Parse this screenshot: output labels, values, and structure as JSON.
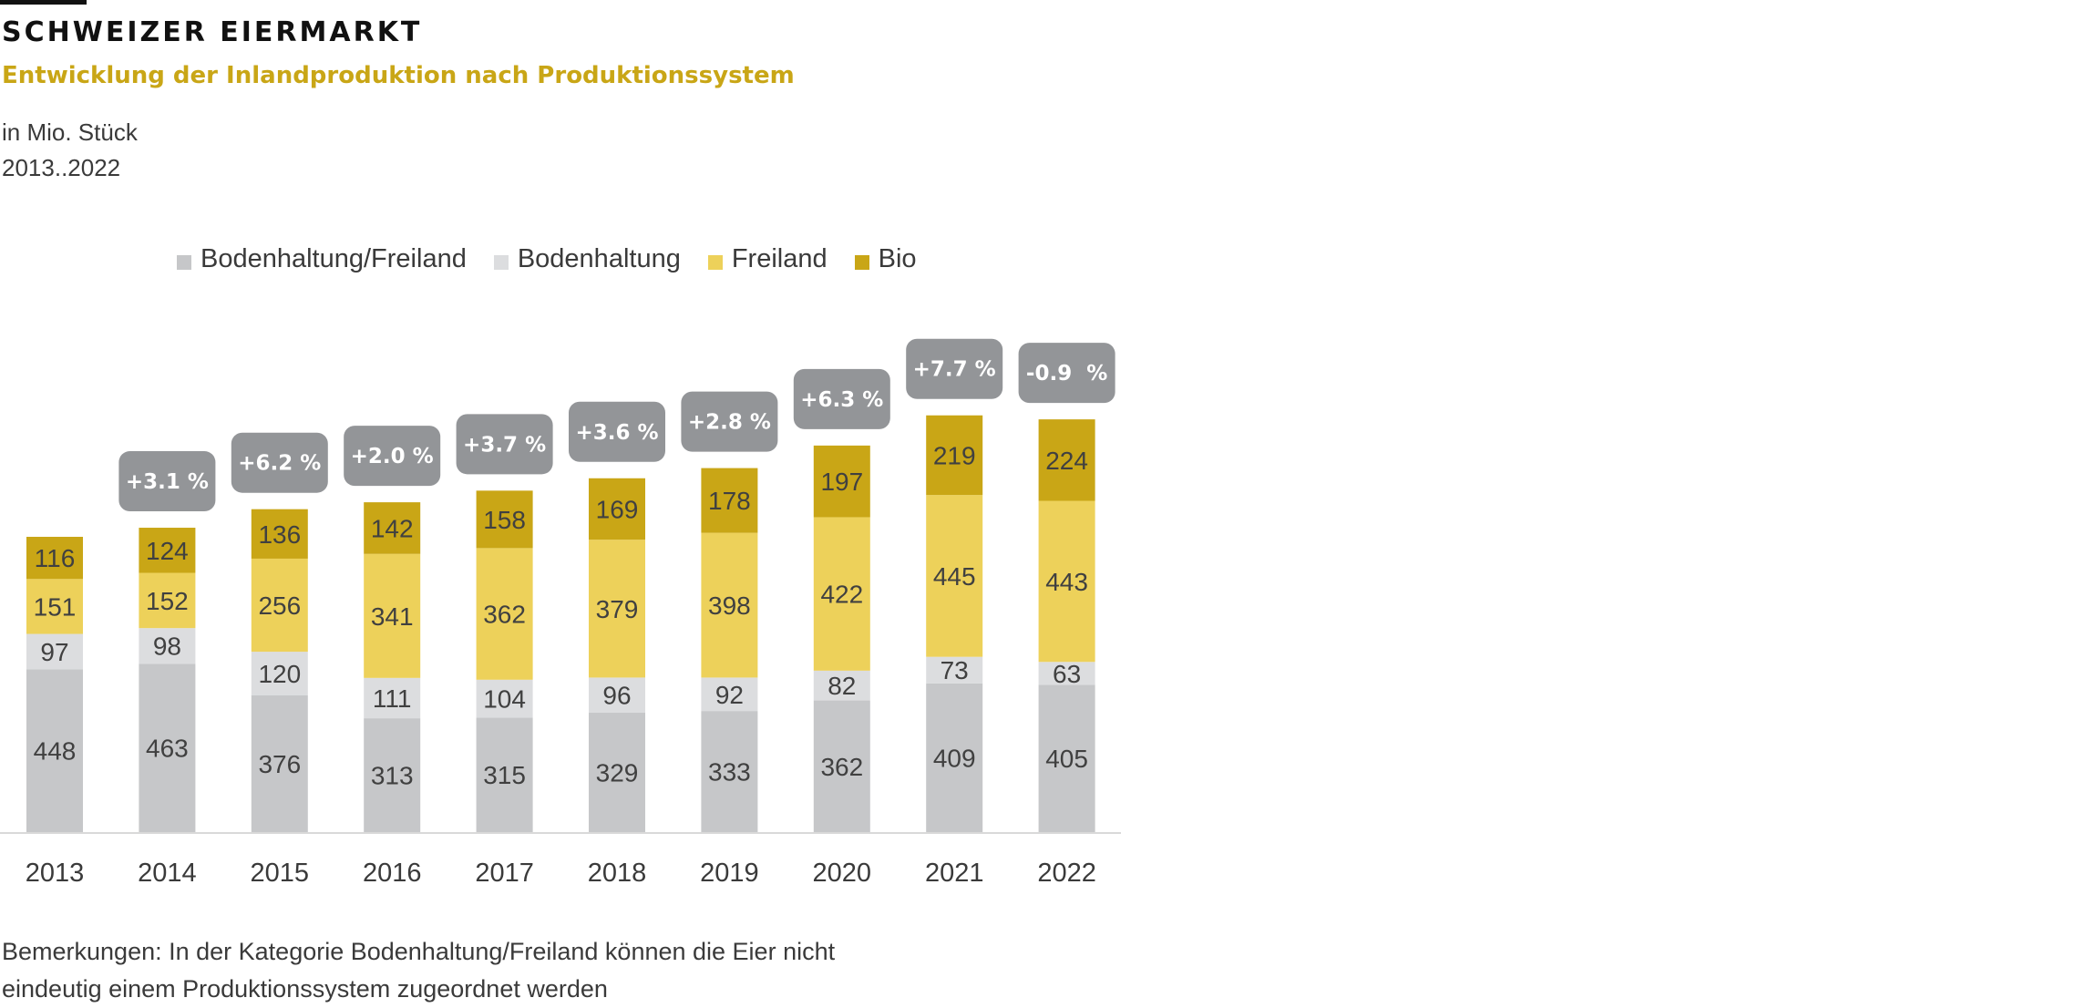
{
  "header": {
    "title": "SCHWEIZER EIERMARKT",
    "subtitle": "Entwicklung der Inlandproduktion nach Produktionssystem",
    "unit": "in Mio. Stück",
    "period": "2013..2022"
  },
  "chart_data": {
    "type": "bar",
    "stacked": true,
    "categories": [
      "2013",
      "2014",
      "2015",
      "2016",
      "2017",
      "2018",
      "2019",
      "2020",
      "2021",
      "2022"
    ],
    "series": [
      {
        "name": "Bodenhaltung/Freiland",
        "color": "#c6c7c9",
        "values": [
          448,
          463,
          376,
          313,
          315,
          329,
          333,
          362,
          409,
          405
        ]
      },
      {
        "name": "Bodenhaltung",
        "color": "#dcdddf",
        "values": [
          97,
          98,
          120,
          111,
          104,
          96,
          92,
          82,
          73,
          63
        ]
      },
      {
        "name": "Freiland",
        "color": "#edd15a",
        "values": [
          151,
          152,
          256,
          341,
          362,
          379,
          398,
          422,
          445,
          443
        ]
      },
      {
        "name": "Bio",
        "color": "#c9a616",
        "values": [
          116,
          124,
          136,
          142,
          158,
          169,
          178,
          197,
          219,
          224
        ]
      }
    ],
    "growth_labels": [
      "",
      "+3.1 %",
      "+6.2 %",
      "+2.0 %",
      "+3.7 %",
      "+3.6 %",
      "+2.8 %",
      "+6.3 %",
      "+7.7 %",
      "-0.9  %"
    ],
    "growth_badge_color": "#939598",
    "legend_position": "top",
    "grid": false,
    "y_axis_visible": false
  },
  "footnote": {
    "line1": "Bemerkungen: In der Kategorie Bodenhaltung/Freiland können die Eier nicht",
    "line2": "eindeutig einem Produktionssystem zugeordnet werden"
  }
}
